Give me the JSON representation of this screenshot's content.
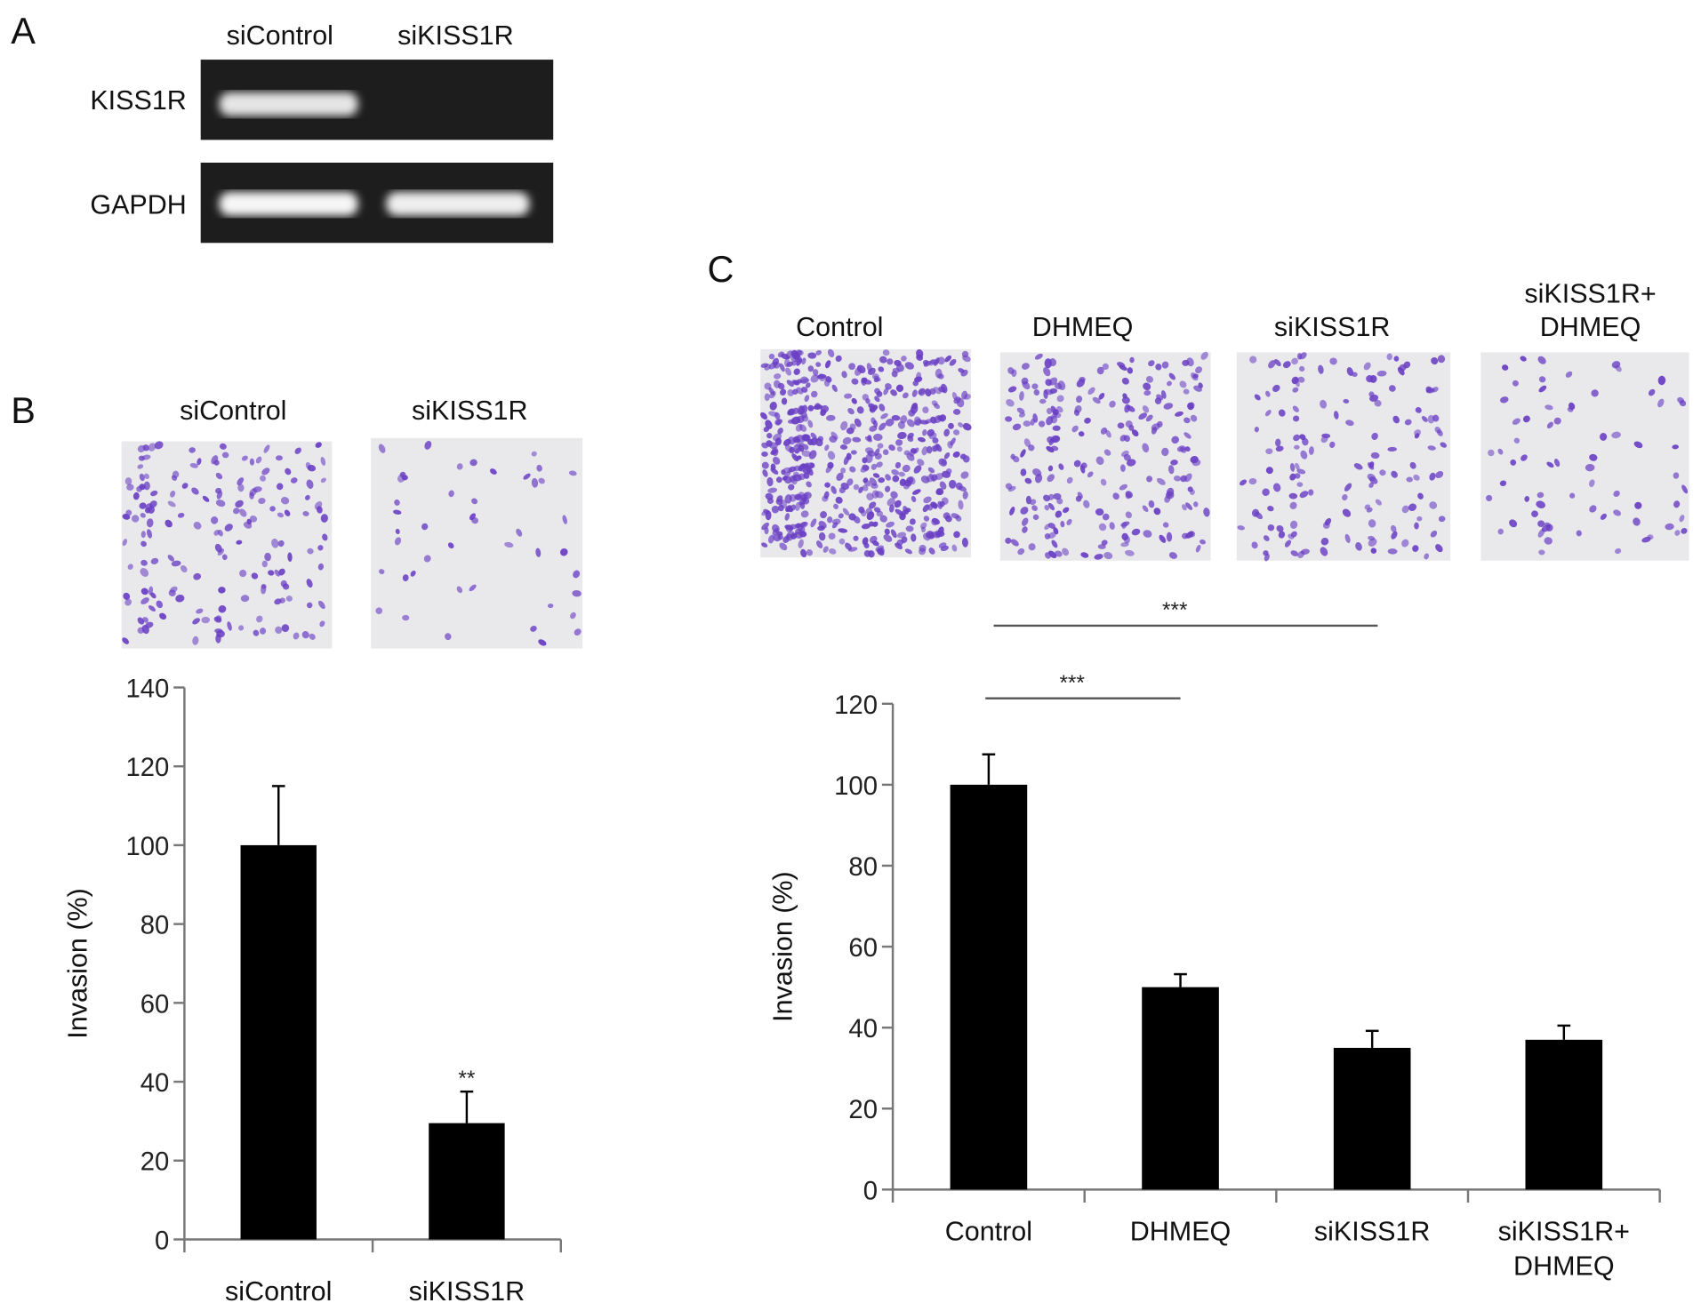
{
  "panel_a": {
    "letter": "A",
    "lanes": [
      "siControl",
      "siKISS1R"
    ],
    "rows": [
      {
        "label": "KISS1R",
        "band_intensity": [
          0.85,
          0.05
        ]
      },
      {
        "label": "GAPDH",
        "band_intensity": [
          0.95,
          0.9
        ]
      }
    ]
  },
  "panel_b": {
    "letter": "B",
    "image_labels": [
      "siControl",
      "siKISS1R"
    ]
  },
  "panel_c": {
    "letter": "C",
    "image_labels": [
      "Control",
      "DHMEQ",
      "siKISS1R",
      "siKISS1R+ DHMEQ"
    ],
    "image_label_lines": [
      [
        "Control"
      ],
      [
        "DHMEQ"
      ],
      [
        "siKISS1R"
      ],
      [
        "siKISS1R+",
        "DHMEQ"
      ]
    ]
  },
  "colors": {
    "bar": "#000000",
    "axis": "#777777",
    "stain": "#6a3fc4",
    "membrane": "#e9e9ec"
  },
  "chart_data": [
    {
      "type": "bar",
      "panel": "B",
      "categories": [
        "siControl",
        "siKISS1R"
      ],
      "values": [
        100,
        29.5
      ],
      "error_upper": [
        115,
        37.5
      ],
      "significance": [
        "",
        "**"
      ],
      "ylabel": "Invasion (%)",
      "xlabel": "",
      "ylim": [
        0,
        140
      ],
      "yticks": [
        0,
        20,
        40,
        60,
        80,
        100,
        120,
        140
      ],
      "grid": false
    },
    {
      "type": "bar",
      "panel": "C",
      "categories": [
        "Control",
        "DHMEQ",
        "siKISS1R",
        "siKISS1R+ DHMEQ"
      ],
      "category_lines": [
        [
          "Control"
        ],
        [
          "DHMEQ"
        ],
        [
          "siKISS1R"
        ],
        [
          "siKISS1R+",
          "DHMEQ"
        ]
      ],
      "values": [
        100,
        50,
        35,
        37
      ],
      "error_upper": [
        107.5,
        53.2,
        39.2,
        40.5
      ],
      "comparisons": [
        {
          "from": "Control",
          "to": "DHMEQ",
          "label": "***"
        },
        {
          "from": "Control",
          "to": "siKISS1R",
          "label": "***"
        }
      ],
      "ylabel": "Invasion (%)",
      "xlabel": "",
      "ylim": [
        0,
        120
      ],
      "yticks": [
        0,
        20,
        40,
        60,
        80,
        100,
        120
      ],
      "grid": false
    }
  ]
}
